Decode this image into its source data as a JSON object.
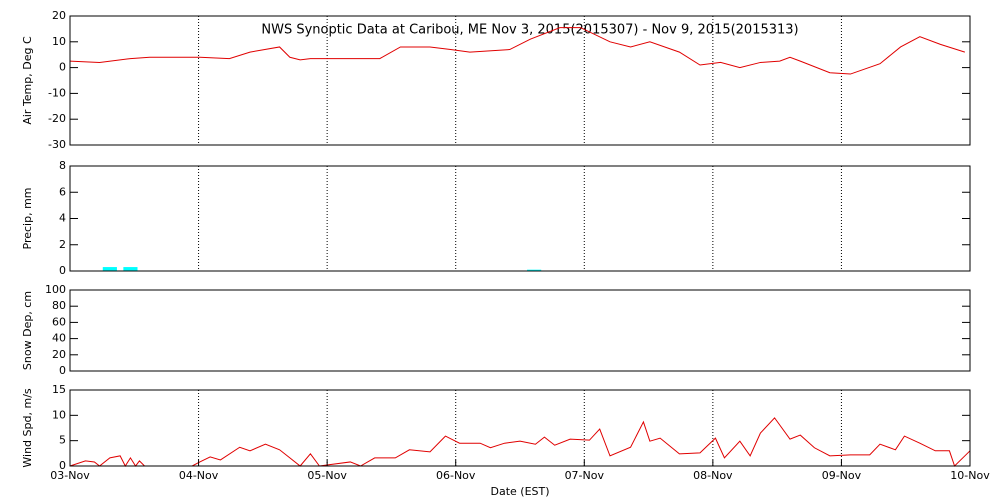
{
  "title": "NWS Synoptic Data at Caribou, ME   Nov  3, 2015(2015307) - Nov  9, 2015(2015313)",
  "chart_data": [
    {
      "type": "line",
      "ylabel": "Air Temp, Deg C",
      "ylim": [
        -30,
        20
      ],
      "yticks": [
        -30,
        -20,
        -10,
        0,
        10,
        20
      ],
      "xlim": [
        0,
        7
      ],
      "grid": true,
      "color": "#e00000",
      "x": [
        0,
        0.23,
        0.47,
        0.62,
        1.01,
        1.24,
        1.4,
        1.63,
        1.71,
        1.79,
        1.87,
        2.18,
        2.41,
        2.57,
        2.8,
        2.96,
        3.11,
        3.42,
        3.58,
        3.81,
        3.97,
        4.2,
        4.36,
        4.51,
        4.74,
        4.9,
        5.06,
        5.21,
        5.37,
        5.52,
        5.6,
        5.68,
        5.91,
        6.07,
        6.3,
        6.46,
        6.61,
        6.77,
        6.96
      ],
      "values": [
        2.5,
        2,
        3.5,
        4,
        4,
        3.5,
        6,
        8,
        4,
        3,
        3.5,
        3.5,
        3.5,
        8,
        8,
        7,
        6,
        7,
        11,
        15.5,
        15.5,
        10,
        8,
        10,
        6,
        1,
        2,
        0,
        2,
        2.5,
        4,
        2.5,
        -2,
        -2.5,
        1.5,
        8,
        12,
        9,
        6
      ]
    },
    {
      "type": "bar",
      "ylabel": "Precip, mm",
      "ylim": [
        0,
        8
      ],
      "yticks": [
        0,
        2,
        4,
        6,
        8
      ],
      "xlim": [
        0,
        7
      ],
      "grid": true,
      "color": "#00ffff",
      "x": [
        0.31,
        0.47,
        3.61
      ],
      "values": [
        0.3,
        0.3,
        0.1
      ]
    },
    {
      "type": "line",
      "ylabel": "Snow Dep, cm",
      "ylim": [
        0,
        100
      ],
      "yticks": [
        0,
        20,
        40,
        60,
        80,
        100
      ],
      "xlim": [
        0,
        7
      ],
      "grid": false,
      "color": "#e00000",
      "x": [],
      "values": []
    },
    {
      "type": "line",
      "ylabel": "Wind Spd, m/s",
      "xlabel": "Date (EST)",
      "ylim": [
        0,
        15
      ],
      "yticks": [
        0,
        5,
        10,
        15
      ],
      "xlim": [
        0,
        7
      ],
      "grid": true,
      "color": "#e00000",
      "xticks": [
        {
          "value": 0,
          "label": "03-Nov"
        },
        {
          "value": 1,
          "label": "04-Nov"
        },
        {
          "value": 2,
          "label": "05-Nov"
        },
        {
          "value": 3,
          "label": "06-Nov"
        },
        {
          "value": 4,
          "label": "07-Nov"
        },
        {
          "value": 5,
          "label": "08-Nov"
        },
        {
          "value": 6,
          "label": "09-Nov"
        },
        {
          "value": 7,
          "label": "10-Nov"
        }
      ],
      "x": [
        0,
        0.12,
        0.19,
        0.23,
        0.31,
        0.39,
        0.43,
        0.47,
        0.51,
        0.54,
        0.58,
        0.95,
        1.01,
        1.09,
        1.17,
        1.32,
        1.4,
        1.52,
        1.63,
        1.71,
        1.79,
        1.87,
        1.94,
        2.18,
        2.26,
        2.37,
        2.53,
        2.64,
        2.8,
        2.92,
        3.03,
        3.19,
        3.27,
        3.38,
        3.5,
        3.62,
        3.69,
        3.77,
        3.89,
        4.04,
        4.12,
        4.2,
        4.36,
        4.46,
        4.51,
        4.59,
        4.74,
        4.9,
        5.02,
        5.09,
        5.21,
        5.29,
        5.37,
        5.48,
        5.6,
        5.68,
        5.79,
        5.91,
        6.07,
        6.22,
        6.3,
        6.42,
        6.49,
        6.61,
        6.73,
        6.84,
        6.88,
        7
      ],
      "values": [
        0,
        1,
        0.8,
        0,
        1.6,
        2,
        0,
        1.6,
        0,
        1,
        0,
        0,
        0.8,
        1.8,
        1.2,
        3.7,
        3,
        4.3,
        3.2,
        1.6,
        0,
        2.4,
        0,
        0.8,
        0,
        1.6,
        1.6,
        3.2,
        2.8,
        5.9,
        4.5,
        4.5,
        3.6,
        4.5,
        4.9,
        4.3,
        5.7,
        4.1,
        5.3,
        5.1,
        7.3,
        2,
        3.7,
        8.7,
        4.9,
        5.5,
        2.4,
        2.6,
        5.5,
        1.6,
        4.9,
        2,
        6.5,
        9.5,
        5.3,
        6.1,
        3.6,
        2,
        2.2,
        2.2,
        4.3,
        3.2,
        5.9,
        4.5,
        3,
        3,
        0,
        3
      ]
    }
  ]
}
